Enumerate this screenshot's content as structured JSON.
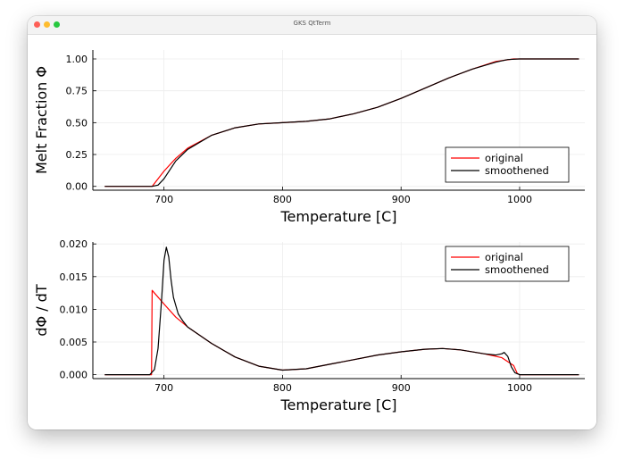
{
  "window": {
    "title": "GKS QtTerm"
  },
  "chart_data": [
    {
      "type": "line",
      "title": "",
      "xlabel": "Temperature [C]",
      "ylabel": "Melt Fraction Φ",
      "xlim": [
        640,
        1055
      ],
      "ylim": [
        -0.03,
        1.07
      ],
      "xticks": [
        700,
        800,
        900,
        1000
      ],
      "yticks": [
        0.0,
        0.25,
        0.5,
        0.75,
        1.0
      ],
      "ytick_labels": [
        "0.00",
        "0.25",
        "0.50",
        "0.75",
        "1.00"
      ],
      "grid": true,
      "legend": "bottom-right",
      "series": [
        {
          "name": "original",
          "color": "#ff0000",
          "x": [
            650,
            690,
            700,
            710,
            720,
            740,
            760,
            780,
            800,
            820,
            840,
            860,
            880,
            900,
            920,
            940,
            960,
            980,
            995,
            1000,
            1050
          ],
          "y": [
            0.0,
            0.0,
            0.12,
            0.22,
            0.3,
            0.4,
            0.46,
            0.49,
            0.5,
            0.51,
            0.53,
            0.57,
            0.62,
            0.69,
            0.77,
            0.85,
            0.92,
            0.98,
            1.0,
            1.0,
            1.0
          ]
        },
        {
          "name": "smoothened",
          "color": "#000000",
          "x": [
            650,
            690,
            695,
            700,
            705,
            710,
            720,
            740,
            760,
            780,
            800,
            820,
            840,
            860,
            880,
            900,
            920,
            940,
            960,
            980,
            990,
            1000,
            1050
          ],
          "y": [
            0.0,
            0.0,
            0.01,
            0.06,
            0.13,
            0.2,
            0.29,
            0.4,
            0.46,
            0.49,
            0.5,
            0.51,
            0.53,
            0.57,
            0.62,
            0.69,
            0.77,
            0.85,
            0.92,
            0.975,
            0.995,
            1.0,
            1.0
          ]
        }
      ]
    },
    {
      "type": "line",
      "title": "",
      "xlabel": "Temperature [C]",
      "ylabel": "dΦ / dT",
      "xlim": [
        640,
        1055
      ],
      "ylim": [
        -0.0006,
        0.0203
      ],
      "xticks": [
        700,
        800,
        900,
        1000
      ],
      "yticks": [
        0.0,
        0.005,
        0.01,
        0.015,
        0.02
      ],
      "ytick_labels": [
        "0.000",
        "0.005",
        "0.010",
        "0.015",
        "0.020"
      ],
      "grid": true,
      "legend": "top-right",
      "series": [
        {
          "name": "original",
          "color": "#ff0000",
          "x": [
            650,
            689.5,
            690,
            700,
            710,
            720,
            740,
            760,
            780,
            800,
            820,
            840,
            860,
            880,
            900,
            920,
            935,
            950,
            970,
            985,
            995,
            998,
            1000,
            1050
          ],
          "y": [
            0.0,
            0.0,
            0.0129,
            0.0108,
            0.0088,
            0.0073,
            0.0048,
            0.0027,
            0.0013,
            0.0007,
            0.0009,
            0.0016,
            0.0023,
            0.003,
            0.0035,
            0.0039,
            0.004,
            0.0038,
            0.0032,
            0.0026,
            0.0014,
            0.0002,
            0.0,
            0.0
          ]
        },
        {
          "name": "smoothened",
          "color": "#000000",
          "x": [
            650,
            688,
            692,
            695,
            698,
            700,
            702,
            704,
            706,
            708,
            712,
            716,
            720,
            740,
            760,
            780,
            800,
            820,
            840,
            860,
            880,
            900,
            920,
            935,
            950,
            970,
            980,
            985,
            987,
            990,
            993,
            996,
            1000,
            1050
          ],
          "y": [
            0.0,
            0.0,
            0.0008,
            0.004,
            0.0115,
            0.0175,
            0.0195,
            0.018,
            0.0145,
            0.0118,
            0.0093,
            0.0082,
            0.0073,
            0.0048,
            0.0027,
            0.0013,
            0.0007,
            0.0009,
            0.0016,
            0.0023,
            0.003,
            0.0035,
            0.0039,
            0.004,
            0.0038,
            0.0032,
            0.003,
            0.0032,
            0.0034,
            0.0028,
            0.0012,
            0.0003,
            0.0,
            0.0
          ]
        }
      ]
    }
  ]
}
